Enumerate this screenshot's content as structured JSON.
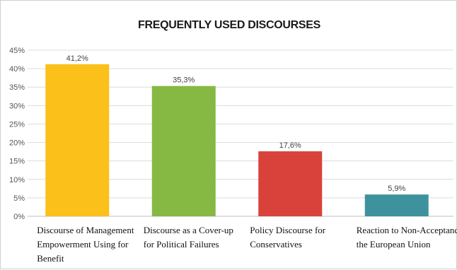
{
  "chart_data": {
    "type": "bar",
    "title": "FREQUENTLY USED DISCOURSES",
    "xlabel": "",
    "ylabel": "",
    "ylim": [
      0,
      45
    ],
    "y_ticks": [
      {
        "value": 0,
        "label": "0%"
      },
      {
        "value": 5,
        "label": "5%"
      },
      {
        "value": 10,
        "label": "10%"
      },
      {
        "value": 15,
        "label": "15%"
      },
      {
        "value": 20,
        "label": "20%"
      },
      {
        "value": 25,
        "label": "25%"
      },
      {
        "value": 30,
        "label": "30%"
      },
      {
        "value": 35,
        "label": "35%"
      },
      {
        "value": 40,
        "label": "40%"
      },
      {
        "value": 45,
        "label": "45%"
      }
    ],
    "grid": true,
    "legend": "none",
    "categories": [
      [
        "Discourse of Management",
        "Empowerment Using for",
        "Benefit"
      ],
      [
        "Discourse as a Cover-up",
        "for Political Failures"
      ],
      [
        "Policy Discourse for",
        "Conservatives"
      ],
      [
        "Reaction to Non-Acceptance to",
        "the European Union"
      ]
    ],
    "values": [
      41.2,
      35.3,
      17.6,
      5.9
    ],
    "value_labels": [
      "41,2%",
      "35,3%",
      "17,6%",
      "5,9%"
    ],
    "colors": [
      "#fbc11a",
      "#86b844",
      "#d9423a",
      "#3e929d"
    ]
  }
}
